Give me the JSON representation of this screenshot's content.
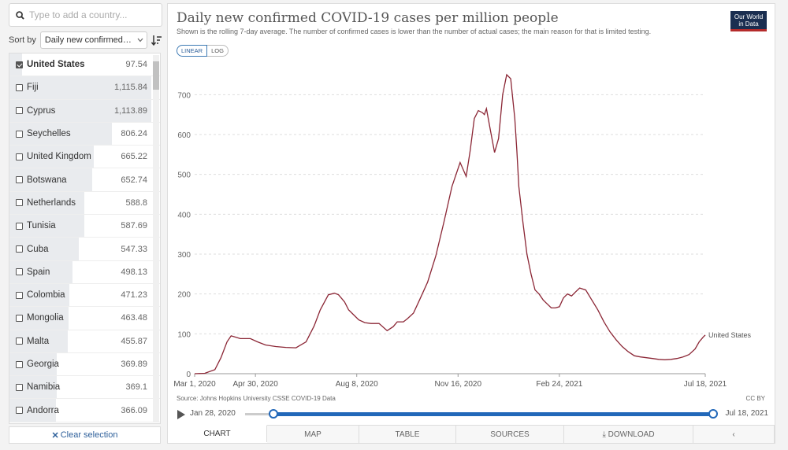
{
  "sidebar": {
    "search_placeholder": "Type to add a country...",
    "sort_label": "Sort by",
    "sort_value": "Daily new confirmed C...",
    "clear_label": "Clear selection",
    "rows": [
      {
        "name": "United States",
        "value": "97.54",
        "selected": true,
        "frac": 0.087
      },
      {
        "name": "Fiji",
        "value": "1,115.84",
        "selected": false,
        "frac": 1.0
      },
      {
        "name": "Cyprus",
        "value": "1,113.89",
        "selected": false,
        "frac": 0.998
      },
      {
        "name": "Seychelles",
        "value": "806.24",
        "selected": false,
        "frac": 0.723
      },
      {
        "name": "United Kingdom",
        "value": "665.22",
        "selected": false,
        "frac": 0.596
      },
      {
        "name": "Botswana",
        "value": "652.74",
        "selected": false,
        "frac": 0.585
      },
      {
        "name": "Netherlands",
        "value": "588.8",
        "selected": false,
        "frac": 0.528
      },
      {
        "name": "Tunisia",
        "value": "587.69",
        "selected": false,
        "frac": 0.527
      },
      {
        "name": "Cuba",
        "value": "547.33",
        "selected": false,
        "frac": 0.491
      },
      {
        "name": "Spain",
        "value": "498.13",
        "selected": false,
        "frac": 0.446
      },
      {
        "name": "Colombia",
        "value": "471.23",
        "selected": false,
        "frac": 0.422
      },
      {
        "name": "Mongolia",
        "value": "463.48",
        "selected": false,
        "frac": 0.415
      },
      {
        "name": "Malta",
        "value": "455.87",
        "selected": false,
        "frac": 0.409
      },
      {
        "name": "Georgia",
        "value": "369.89",
        "selected": false,
        "frac": 0.331
      },
      {
        "name": "Namibia",
        "value": "369.1",
        "selected": false,
        "frac": 0.331
      },
      {
        "name": "Andorra",
        "value": "366.09",
        "selected": false,
        "frac": 0.328
      }
    ]
  },
  "header": {
    "title": "Daily new confirmed COVID-19 cases per million people",
    "subtitle": "Shown is the rolling 7-day average. The number of confirmed cases is lower than the number of actual cases; the main reason for that is limited testing.",
    "logo_line1": "Our World",
    "logo_line2": "in Data",
    "scale_linear": "LINEAR",
    "scale_log": "LOG"
  },
  "footer": {
    "source": "Source: Johns Hopkins University CSSE COVID-19 Data",
    "license": "CC BY",
    "timeline_start": "Jan 28, 2020",
    "timeline_end": "Jul 18, 2021"
  },
  "tabs": [
    {
      "label": "CHART",
      "active": true
    },
    {
      "label": "MAP",
      "active": false
    },
    {
      "label": "TABLE",
      "active": false
    },
    {
      "label": "SOURCES",
      "active": false
    },
    {
      "label": "⤓ DOWNLOAD",
      "active": false
    },
    {
      "label": "‹",
      "active": false
    }
  ],
  "chart_data": {
    "type": "line",
    "title": "Daily new confirmed COVID-19 cases per million people",
    "ylabel": "",
    "xlabel": "",
    "ylim": [
      0,
      750
    ],
    "yticks": [
      0,
      100,
      200,
      300,
      400,
      500,
      600,
      700
    ],
    "xtick_labels": [
      "Mar 1, 2020",
      "Apr 30, 2020",
      "Aug 8, 2020",
      "Nov 16, 2020",
      "Feb 24, 2021",
      "Jul 18, 2021"
    ],
    "xtick_days": [
      0,
      60,
      160,
      260,
      360,
      504
    ],
    "grid": true,
    "line_color": "#8b2635",
    "series": [
      {
        "name": "United States",
        "x_days": [
          0,
          10,
          20,
          26,
          32,
          36,
          40,
          45,
          55,
          62,
          70,
          80,
          90,
          100,
          110,
          118,
          124,
          132,
          138,
          142,
          148,
          152,
          156,
          162,
          168,
          174,
          182,
          190,
          196,
          200,
          206,
          210,
          216,
          222,
          230,
          238,
          246,
          254,
          262,
          268,
          272,
          276,
          280,
          284,
          286,
          288,
          292,
          296,
          300,
          304,
          308,
          312,
          316,
          318,
          320,
          324,
          328,
          332,
          336,
          340,
          344,
          348,
          352,
          356,
          360,
          364,
          368,
          372,
          376,
          380,
          386,
          392,
          398,
          404,
          410,
          416,
          422,
          428,
          434,
          440,
          446,
          452,
          458,
          464,
          470,
          476,
          482,
          488,
          494,
          498,
          502,
          504
        ],
        "y": [
          0,
          1,
          10,
          40,
          80,
          95,
          92,
          88,
          88,
          80,
          72,
          68,
          66,
          65,
          80,
          120,
          160,
          198,
          202,
          198,
          180,
          160,
          150,
          135,
          128,
          126,
          126,
          108,
          118,
          130,
          130,
          138,
          152,
          185,
          230,
          295,
          380,
          470,
          530,
          495,
          560,
          640,
          660,
          655,
          650,
          665,
          610,
          555,
          590,
          700,
          750,
          740,
          640,
          560,
          470,
          380,
          300,
          250,
          210,
          200,
          185,
          175,
          165,
          165,
          168,
          190,
          200,
          195,
          205,
          215,
          210,
          185,
          160,
          130,
          105,
          85,
          68,
          55,
          45,
          42,
          40,
          38,
          36,
          35,
          36,
          38,
          42,
          48,
          62,
          80,
          92,
          97
        ]
      }
    ]
  }
}
